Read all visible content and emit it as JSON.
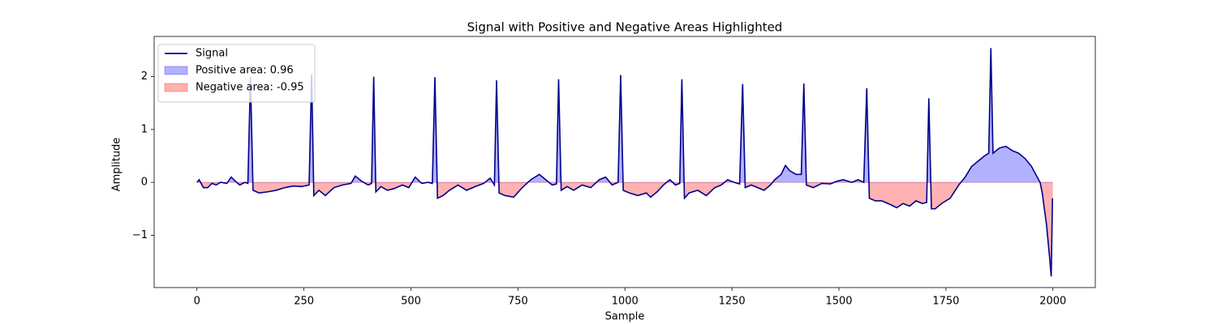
{
  "chart_data": {
    "type": "line",
    "title": "Signal with Positive and Negative Areas Highlighted",
    "xlabel": "Sample",
    "ylabel": "Amplitude",
    "x": [
      0,
      5,
      15,
      25,
      35,
      45,
      55,
      70,
      80,
      90,
      100,
      112,
      119,
      125,
      131,
      145,
      165,
      185,
      205,
      225,
      245,
      262,
      268,
      273,
      285,
      300,
      320,
      340,
      360,
      370,
      385,
      400,
      408,
      413,
      418,
      430,
      445,
      460,
      480,
      495,
      510,
      525,
      540,
      550,
      556,
      562,
      575,
      590,
      610,
      630,
      650,
      670,
      685,
      695,
      700,
      706,
      720,
      740,
      760,
      780,
      800,
      815,
      830,
      840,
      845,
      851,
      865,
      880,
      900,
      920,
      940,
      955,
      970,
      984,
      990,
      996,
      1010,
      1030,
      1050,
      1060,
      1075,
      1090,
      1105,
      1118,
      1128,
      1133,
      1139,
      1150,
      1170,
      1190,
      1210,
      1225,
      1240,
      1255,
      1268,
      1275,
      1281,
      1295,
      1310,
      1325,
      1340,
      1350,
      1365,
      1375,
      1385,
      1400,
      1412,
      1418,
      1424,
      1440,
      1460,
      1480,
      1495,
      1510,
      1530,
      1545,
      1558,
      1565,
      1571,
      1585,
      1600,
      1620,
      1635,
      1650,
      1665,
      1680,
      1695,
      1705,
      1710,
      1716,
      1725,
      1740,
      1760,
      1780,
      1795,
      1810,
      1825,
      1840,
      1850,
      1855,
      1860,
      1875,
      1890,
      1905,
      1920,
      1935,
      1950,
      1960,
      1970,
      1975,
      1985,
      1992,
      1996,
      1999
    ],
    "series": [
      {
        "name": "Signal",
        "color": "#00008b",
        "values": [
          0,
          0.05,
          -0.1,
          -0.1,
          -0.02,
          -0.05,
          0.0,
          -0.02,
          0.1,
          0.02,
          -0.05,
          0.0,
          -0.02,
          2.0,
          -0.15,
          -0.2,
          -0.18,
          -0.15,
          -0.1,
          -0.07,
          -0.08,
          -0.05,
          2.05,
          -0.25,
          -0.15,
          -0.25,
          -0.1,
          -0.05,
          -0.02,
          0.12,
          0.02,
          -0.05,
          -0.02,
          2.0,
          -0.18,
          -0.08,
          -0.15,
          -0.12,
          -0.05,
          -0.1,
          0.1,
          -0.02,
          0.0,
          -0.02,
          1.99,
          -0.3,
          -0.25,
          -0.15,
          -0.05,
          -0.15,
          -0.08,
          -0.02,
          0.08,
          -0.05,
          1.93,
          -0.2,
          -0.25,
          -0.28,
          -0.1,
          0.05,
          0.15,
          0.05,
          -0.05,
          -0.03,
          1.95,
          -0.15,
          -0.08,
          -0.15,
          -0.05,
          -0.1,
          0.05,
          0.1,
          -0.05,
          0.0,
          2.03,
          -0.15,
          -0.2,
          -0.25,
          -0.2,
          -0.28,
          -0.18,
          -0.05,
          0.05,
          -0.05,
          -0.02,
          1.95,
          -0.3,
          -0.2,
          -0.15,
          -0.25,
          -0.1,
          -0.05,
          0.05,
          0.0,
          -0.03,
          1.86,
          -0.1,
          -0.05,
          -0.1,
          -0.15,
          -0.05,
          0.05,
          0.15,
          0.32,
          0.22,
          0.15,
          0.15,
          1.87,
          -0.05,
          -0.1,
          -0.02,
          -0.03,
          0.02,
          0.05,
          0.0,
          0.05,
          0.0,
          1.78,
          -0.3,
          -0.35,
          -0.35,
          -0.42,
          -0.48,
          -0.4,
          -0.45,
          -0.35,
          -0.4,
          -0.38,
          1.59,
          -0.5,
          -0.5,
          -0.4,
          -0.3,
          -0.05,
          0.1,
          0.3,
          0.4,
          0.5,
          0.55,
          2.54,
          0.55,
          0.65,
          0.68,
          0.6,
          0.55,
          0.45,
          0.3,
          0.15,
          0.0,
          -0.2,
          -0.8,
          -1.4,
          -1.78,
          -0.3
        ]
      }
    ],
    "fills": [
      {
        "name": "Positive area: 0.96",
        "where": "above",
        "color": "rgba(0,0,255,0.3)"
      },
      {
        "name": "Negative area: -0.95",
        "where": "below",
        "color": "rgba(255,0,0,0.3)"
      }
    ],
    "xlim": [
      -100,
      2099
    ],
    "ylim": [
      -1.99,
      2.76
    ],
    "xticks": [
      0,
      250,
      500,
      750,
      1000,
      1250,
      1500,
      1750,
      2000
    ],
    "yticks": [
      {
        "value": -1,
        "label": "−1"
      },
      0,
      1,
      2
    ],
    "legend": "upper left"
  }
}
